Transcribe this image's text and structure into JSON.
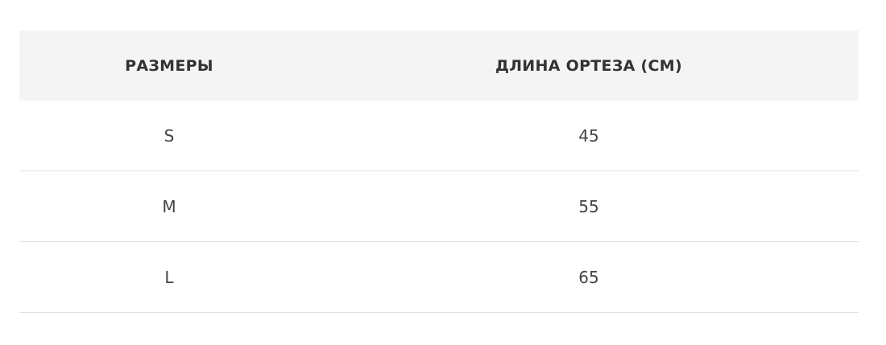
{
  "table": {
    "headers": [
      "РАЗМЕРЫ",
      "ДЛИНА ОРТЕЗА (СМ)"
    ],
    "rows": [
      [
        "S",
        "45"
      ],
      [
        "M",
        "55"
      ],
      [
        "L",
        "65"
      ]
    ]
  }
}
